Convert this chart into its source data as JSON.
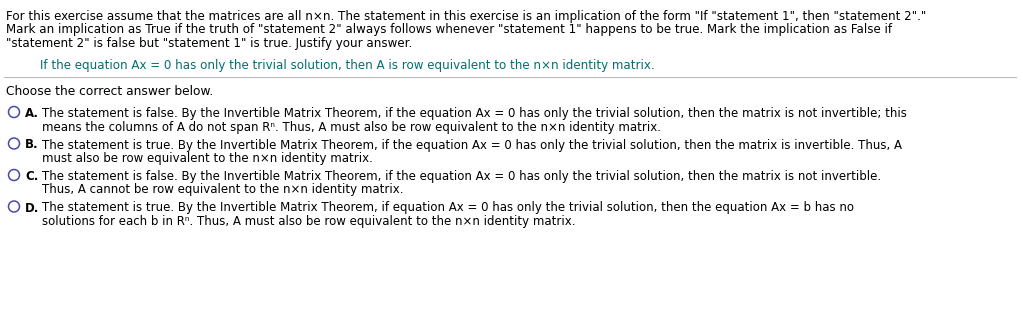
{
  "bg_color": "#ffffff",
  "text_color_black": "#000000",
  "text_color_teal": "#007070",
  "fs_intro": 8.6,
  "fs_question": 8.6,
  "fs_choose": 8.8,
  "fs_option": 8.5,
  "intro_line1": "For this exercise assume that the matrices are all n×n. The statement in this exercise is an implication of the form \"If \"statement 1\", then \"statement 2\".\"",
  "intro_line2": "Mark an implication as True if the truth of \"statement 2\" always follows whenever \"statement 1\" happens to be true. Mark the implication as False if",
  "intro_line3": "\"statement 2\" is false but \"statement 1\" is true. Justify your answer.",
  "question_text": "If the equation Ax = 0 has only the trivial solution, then A is row equivalent to the n×n identity matrix.",
  "choose_text": "Choose the correct answer below.",
  "A_label": "A.",
  "A_line1": "The statement is false. By the Invertible Matrix Theorem, if the equation Ax = 0 has only the trivial solution, then the matrix is not invertible; this",
  "A_line2": "means the columns of A do not span Rⁿ. Thus, A must also be row equivalent to the n×n identity matrix.",
  "B_label": "B.",
  "B_line1": "The statement is true. By the Invertible Matrix Theorem, if the equation Ax = 0 has only the trivial solution, then the matrix is invertible. Thus, A",
  "B_line2": "must also be row equivalent to the n×n identity matrix.",
  "C_label": "C.",
  "C_line1": "The statement is false. By the Invertible Matrix Theorem, if the equation Ax = 0 has only the trivial solution, then the matrix is not invertible.",
  "C_line2": "Thus, A cannot be row equivalent to the n×n identity matrix.",
  "D_label": "D.",
  "D_line1": "The statement is true. By the Invertible Matrix Theorem, if equation Ax = 0 has only the trivial solution, then the equation Ax = b has no",
  "D_line2": "solutions for each b in Rⁿ. Thus, A must also be row equivalent to the n×n identity matrix.",
  "circle_color": "#4a4aaa",
  "line_color": "#bbbbbb"
}
